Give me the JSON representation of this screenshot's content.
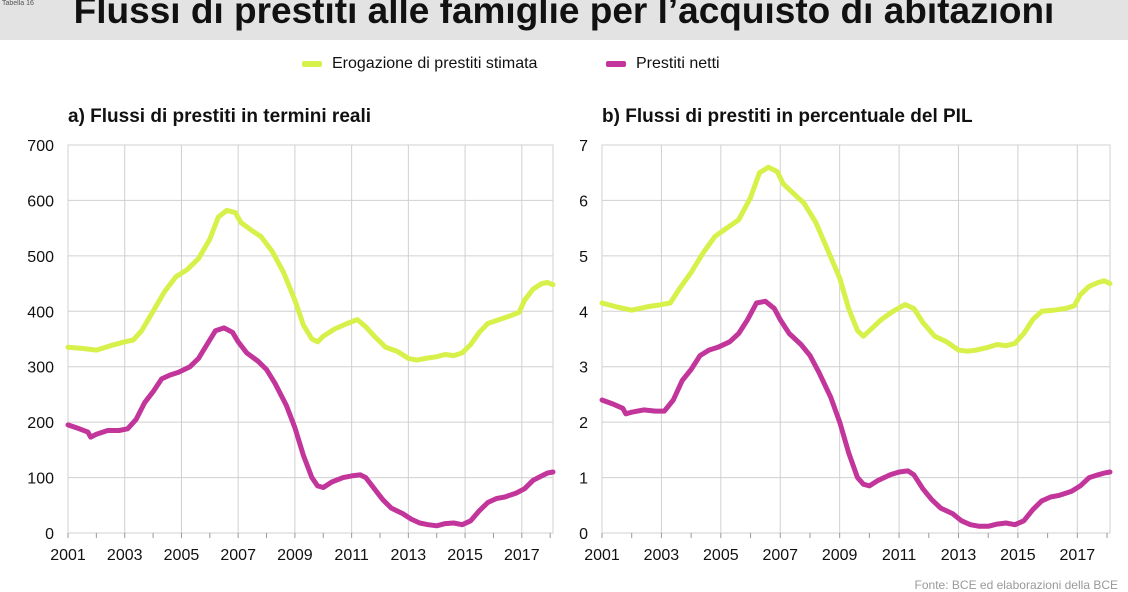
{
  "header": {
    "small_tag": "Tabella 16",
    "title": "Flussi di prestiti alle famiglie per l’acquisto di abitazioni"
  },
  "legend": [
    {
      "label": "Erogazione di prestiti stimata",
      "color": "#d8f04a"
    },
    {
      "label": "Prestiti netti",
      "color": "#c2359b"
    }
  ],
  "source": "Fonte: BCE ed elaborazioni della BCE",
  "chart_data": [
    {
      "type": "line",
      "title": "a) Flussi di prestiti in termini reali",
      "xlabel": "",
      "ylabel": "",
      "xlim": [
        2001,
        2018.1
      ],
      "ylim": [
        0,
        700
      ],
      "x_ticks": [
        "2001",
        "2003",
        "2005",
        "2007",
        "2009",
        "2011",
        "2013",
        "2015",
        "2017"
      ],
      "y_ticks": [
        "0",
        "100",
        "200",
        "300",
        "400",
        "500",
        "600",
        "700"
      ],
      "grid": true,
      "series": [
        {
          "name": "Erogazione di prestiti stimata",
          "color": "#d8f04a",
          "points": [
            [
              2001.0,
              335
            ],
            [
              2001.5,
              333
            ],
            [
              2002.0,
              330
            ],
            [
              2002.5,
              338
            ],
            [
              2003.0,
              345
            ],
            [
              2003.3,
              348
            ],
            [
              2003.6,
              365
            ],
            [
              2004.0,
              400
            ],
            [
              2004.4,
              435
            ],
            [
              2004.8,
              462
            ],
            [
              2005.2,
              475
            ],
            [
              2005.6,
              495
            ],
            [
              2006.0,
              530
            ],
            [
              2006.3,
              570
            ],
            [
              2006.6,
              582
            ],
            [
              2006.9,
              578
            ],
            [
              2007.1,
              560
            ],
            [
              2007.5,
              545
            ],
            [
              2007.8,
              535
            ],
            [
              2008.2,
              508
            ],
            [
              2008.6,
              470
            ],
            [
              2009.0,
              420
            ],
            [
              2009.3,
              375
            ],
            [
              2009.6,
              350
            ],
            [
              2009.8,
              345
            ],
            [
              2010.0,
              355
            ],
            [
              2010.4,
              368
            ],
            [
              2010.8,
              377
            ],
            [
              2011.2,
              385
            ],
            [
              2011.5,
              372
            ],
            [
              2011.8,
              355
            ],
            [
              2012.2,
              335
            ],
            [
              2012.6,
              328
            ],
            [
              2013.0,
              315
            ],
            [
              2013.3,
              312
            ],
            [
              2013.6,
              315
            ],
            [
              2014.0,
              318
            ],
            [
              2014.3,
              322
            ],
            [
              2014.6,
              320
            ],
            [
              2014.9,
              325
            ],
            [
              2015.2,
              340
            ],
            [
              2015.5,
              362
            ],
            [
              2015.8,
              378
            ],
            [
              2016.2,
              385
            ],
            [
              2016.6,
              392
            ],
            [
              2016.9,
              398
            ],
            [
              2017.1,
              420
            ],
            [
              2017.4,
              440
            ],
            [
              2017.7,
              450
            ],
            [
              2017.9,
              452
            ],
            [
              2018.1,
              448
            ]
          ]
        },
        {
          "name": "Prestiti netti",
          "color": "#c2359b",
          "points": [
            [
              2001.0,
              195
            ],
            [
              2001.4,
              188
            ],
            [
              2001.7,
              182
            ],
            [
              2001.8,
              173
            ],
            [
              2002.0,
              178
            ],
            [
              2002.4,
              185
            ],
            [
              2002.8,
              185
            ],
            [
              2003.1,
              188
            ],
            [
              2003.4,
              205
            ],
            [
              2003.7,
              235
            ],
            [
              2004.0,
              255
            ],
            [
              2004.3,
              278
            ],
            [
              2004.6,
              285
            ],
            [
              2004.9,
              290
            ],
            [
              2005.3,
              300
            ],
            [
              2005.6,
              315
            ],
            [
              2005.9,
              340
            ],
            [
              2006.2,
              365
            ],
            [
              2006.5,
              370
            ],
            [
              2006.8,
              362
            ],
            [
              2007.0,
              345
            ],
            [
              2007.3,
              325
            ],
            [
              2007.7,
              310
            ],
            [
              2008.0,
              295
            ],
            [
              2008.3,
              270
            ],
            [
              2008.7,
              230
            ],
            [
              2009.0,
              190
            ],
            [
              2009.3,
              140
            ],
            [
              2009.6,
              100
            ],
            [
              2009.8,
              85
            ],
            [
              2010.0,
              82
            ],
            [
              2010.3,
              92
            ],
            [
              2010.7,
              100
            ],
            [
              2011.0,
              103
            ],
            [
              2011.3,
              105
            ],
            [
              2011.5,
              100
            ],
            [
              2011.8,
              80
            ],
            [
              2012.1,
              60
            ],
            [
              2012.4,
              45
            ],
            [
              2012.8,
              35
            ],
            [
              2013.1,
              25
            ],
            [
              2013.4,
              18
            ],
            [
              2013.7,
              15
            ],
            [
              2014.0,
              13
            ],
            [
              2014.3,
              17
            ],
            [
              2014.6,
              18
            ],
            [
              2014.9,
              15
            ],
            [
              2015.2,
              22
            ],
            [
              2015.5,
              40
            ],
            [
              2015.8,
              55
            ],
            [
              2016.1,
              62
            ],
            [
              2016.4,
              65
            ],
            [
              2016.8,
              72
            ],
            [
              2017.1,
              80
            ],
            [
              2017.4,
              95
            ],
            [
              2017.7,
              103
            ],
            [
              2017.9,
              108
            ],
            [
              2018.1,
              110
            ]
          ]
        }
      ]
    },
    {
      "type": "line",
      "title": "b) Flussi di prestiti in percentuale del PIL",
      "xlabel": "",
      "ylabel": "",
      "xlim": [
        2001,
        2018.1
      ],
      "ylim": [
        0,
        7
      ],
      "x_ticks": [
        "2001",
        "2003",
        "2005",
        "2007",
        "2009",
        "2011",
        "2013",
        "2015",
        "2017"
      ],
      "y_ticks": [
        "0",
        "1",
        "2",
        "3",
        "4",
        "5",
        "6",
        "7"
      ],
      "grid": true,
      "series": [
        {
          "name": "Erogazione di prestiti stimata",
          "color": "#d8f04a",
          "points": [
            [
              2001.0,
              4.15
            ],
            [
              2001.5,
              4.08
            ],
            [
              2002.0,
              4.02
            ],
            [
              2002.5,
              4.08
            ],
            [
              2003.0,
              4.12
            ],
            [
              2003.3,
              4.15
            ],
            [
              2003.6,
              4.4
            ],
            [
              2004.0,
              4.7
            ],
            [
              2004.4,
              5.05
            ],
            [
              2004.8,
              5.35
            ],
            [
              2005.2,
              5.5
            ],
            [
              2005.6,
              5.65
            ],
            [
              2006.0,
              6.05
            ],
            [
              2006.3,
              6.5
            ],
            [
              2006.6,
              6.6
            ],
            [
              2006.9,
              6.52
            ],
            [
              2007.1,
              6.3
            ],
            [
              2007.5,
              6.1
            ],
            [
              2007.8,
              5.95
            ],
            [
              2008.2,
              5.6
            ],
            [
              2008.6,
              5.1
            ],
            [
              2009.0,
              4.6
            ],
            [
              2009.3,
              4.05
            ],
            [
              2009.6,
              3.65
            ],
            [
              2009.8,
              3.55
            ],
            [
              2010.0,
              3.65
            ],
            [
              2010.4,
              3.85
            ],
            [
              2010.8,
              4.0
            ],
            [
              2011.2,
              4.12
            ],
            [
              2011.5,
              4.05
            ],
            [
              2011.8,
              3.8
            ],
            [
              2012.2,
              3.55
            ],
            [
              2012.6,
              3.45
            ],
            [
              2013.0,
              3.3
            ],
            [
              2013.3,
              3.28
            ],
            [
              2013.6,
              3.3
            ],
            [
              2014.0,
              3.35
            ],
            [
              2014.3,
              3.4
            ],
            [
              2014.6,
              3.38
            ],
            [
              2014.9,
              3.42
            ],
            [
              2015.2,
              3.6
            ],
            [
              2015.5,
              3.85
            ],
            [
              2015.8,
              4.0
            ],
            [
              2016.2,
              4.02
            ],
            [
              2016.6,
              4.05
            ],
            [
              2016.9,
              4.1
            ],
            [
              2017.1,
              4.3
            ],
            [
              2017.4,
              4.45
            ],
            [
              2017.7,
              4.52
            ],
            [
              2017.9,
              4.55
            ],
            [
              2018.1,
              4.5
            ]
          ]
        },
        {
          "name": "Prestiti netti",
          "color": "#c2359b",
          "points": [
            [
              2001.0,
              2.4
            ],
            [
              2001.4,
              2.32
            ],
            [
              2001.7,
              2.25
            ],
            [
              2001.8,
              2.15
            ],
            [
              2002.0,
              2.18
            ],
            [
              2002.4,
              2.22
            ],
            [
              2002.8,
              2.2
            ],
            [
              2003.1,
              2.2
            ],
            [
              2003.4,
              2.4
            ],
            [
              2003.7,
              2.75
            ],
            [
              2004.0,
              2.95
            ],
            [
              2004.3,
              3.2
            ],
            [
              2004.6,
              3.3
            ],
            [
              2004.9,
              3.35
            ],
            [
              2005.3,
              3.45
            ],
            [
              2005.6,
              3.6
            ],
            [
              2005.9,
              3.85
            ],
            [
              2006.2,
              4.15
            ],
            [
              2006.5,
              4.18
            ],
            [
              2006.8,
              4.05
            ],
            [
              2007.0,
              3.85
            ],
            [
              2007.3,
              3.6
            ],
            [
              2007.7,
              3.4
            ],
            [
              2008.0,
              3.2
            ],
            [
              2008.3,
              2.9
            ],
            [
              2008.7,
              2.45
            ],
            [
              2009.0,
              2.0
            ],
            [
              2009.3,
              1.45
            ],
            [
              2009.6,
              1.0
            ],
            [
              2009.8,
              0.88
            ],
            [
              2010.0,
              0.85
            ],
            [
              2010.3,
              0.95
            ],
            [
              2010.7,
              1.05
            ],
            [
              2011.0,
              1.1
            ],
            [
              2011.3,
              1.12
            ],
            [
              2011.5,
              1.05
            ],
            [
              2011.8,
              0.8
            ],
            [
              2012.1,
              0.6
            ],
            [
              2012.4,
              0.45
            ],
            [
              2012.8,
              0.35
            ],
            [
              2013.1,
              0.22
            ],
            [
              2013.4,
              0.15
            ],
            [
              2013.7,
              0.12
            ],
            [
              2014.0,
              0.12
            ],
            [
              2014.3,
              0.16
            ],
            [
              2014.6,
              0.18
            ],
            [
              2014.9,
              0.15
            ],
            [
              2015.2,
              0.22
            ],
            [
              2015.5,
              0.42
            ],
            [
              2015.8,
              0.58
            ],
            [
              2016.1,
              0.65
            ],
            [
              2016.4,
              0.68
            ],
            [
              2016.8,
              0.75
            ],
            [
              2017.1,
              0.85
            ],
            [
              2017.4,
              1.0
            ],
            [
              2017.7,
              1.05
            ],
            [
              2017.9,
              1.08
            ],
            [
              2018.1,
              1.1
            ]
          ]
        }
      ]
    }
  ]
}
